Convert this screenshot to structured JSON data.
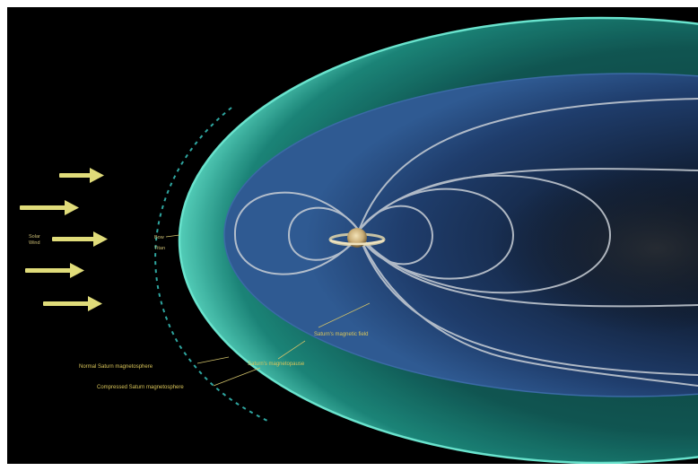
{
  "diagram": {
    "labels": {
      "solar_wind_line1": "Solar",
      "solar_wind_line2": "Wind",
      "magnetotail_line1": "Bow",
      "magnetotail_line2": "Titan",
      "saturn_magnetic_field": "Saturn's magnetic field",
      "saturn_magnetopause": "Saturn's magnetopause",
      "normal_magnetosphere": "Normal Saturn magnetosphere",
      "compressed_magnetosphere": "Compressed Saturn magnetosphere"
    },
    "colors": {
      "background": "#000000",
      "outer_boundary": "#5fe0c8",
      "inner_boundary": "#2a4f86",
      "field_lines": "#c9cfd6",
      "arrows": "#e0dc7a",
      "label_text": "#d9c55a"
    },
    "arrow_count": 5
  }
}
